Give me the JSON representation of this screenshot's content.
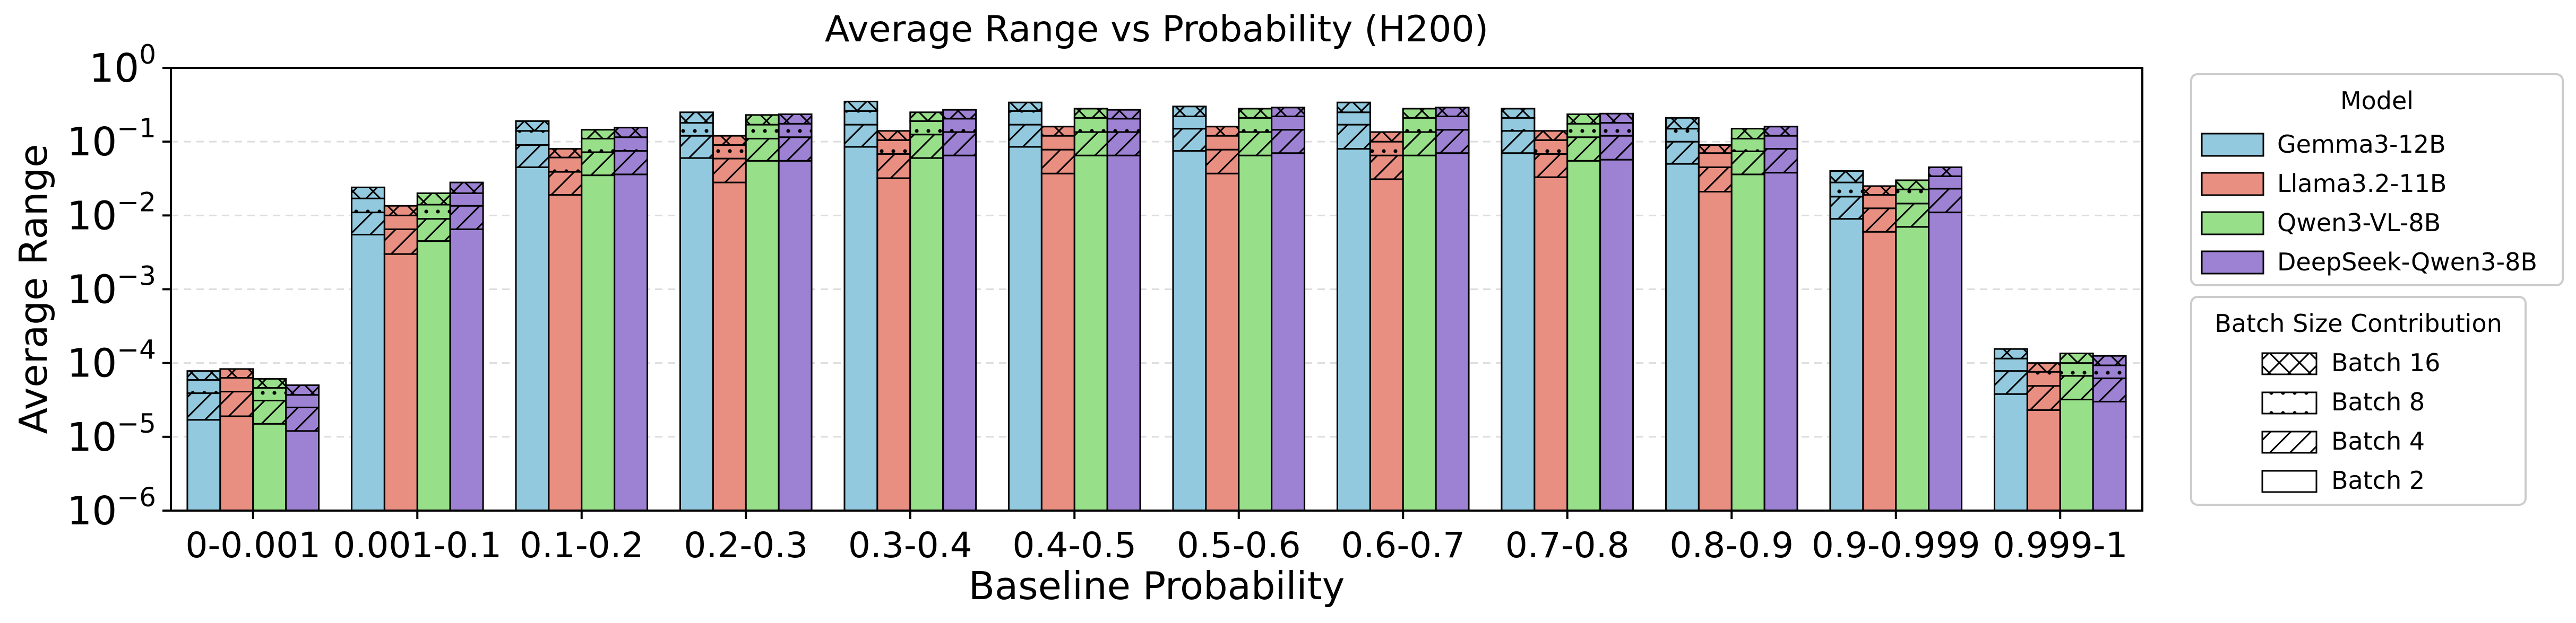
{
  "chart_data": {
    "type": "bar",
    "title": "Average Range vs Probability (H200)",
    "xlabel": "Baseline Probability",
    "ylabel": "Average Range",
    "yscale": "log",
    "ylim": [
      1e-06,
      1
    ],
    "yticks": [
      {
        "value": 1e-06,
        "base": "10",
        "exp": "−6"
      },
      {
        "value": 1e-05,
        "base": "10",
        "exp": "−5"
      },
      {
        "value": 0.0001,
        "base": "10",
        "exp": "−4"
      },
      {
        "value": 0.001,
        "base": "10",
        "exp": "−3"
      },
      {
        "value": 0.01,
        "base": "10",
        "exp": "−2"
      },
      {
        "value": 0.1,
        "base": "10",
        "exp": "−1"
      },
      {
        "value": 1,
        "base": "10",
        "exp": "0"
      }
    ],
    "grid": "horizontal-dashed",
    "categories": [
      "0-0.001",
      "0.001-0.1",
      "0.1-0.2",
      "0.2-0.3",
      "0.3-0.4",
      "0.4-0.5",
      "0.5-0.6",
      "0.6-0.7",
      "0.7-0.8",
      "0.8-0.9",
      "0.9-0.999",
      "0.999-1"
    ],
    "stack_order": [
      "Batch 2",
      "Batch 4",
      "Batch 8",
      "Batch 16"
    ],
    "series": [
      {
        "name": "Gemma3-12B",
        "color": "#92c9de",
        "values": [
          [
            1.7e-05,
            3.9e-05,
            5.9e-05,
            7.8e-05
          ],
          [
            0.0055,
            0.011,
            0.017,
            0.024
          ],
          [
            0.045,
            0.09,
            0.14,
            0.19
          ],
          [
            0.06,
            0.12,
            0.18,
            0.25
          ],
          [
            0.085,
            0.17,
            0.26,
            0.35
          ],
          [
            0.085,
            0.17,
            0.26,
            0.34
          ],
          [
            0.075,
            0.15,
            0.22,
            0.3
          ],
          [
            0.08,
            0.17,
            0.25,
            0.34
          ],
          [
            0.07,
            0.14,
            0.21,
            0.28
          ],
          [
            0.05,
            0.1,
            0.15,
            0.21
          ],
          [
            0.009,
            0.018,
            0.028,
            0.04
          ],
          [
            3.8e-05,
            7.8e-05,
            0.000115,
            0.000155
          ]
        ]
      },
      {
        "name": "Llama3.2-11B",
        "color": "#e88f82",
        "values": [
          [
            1.9e-05,
            4.1e-05,
            6.3e-05,
            8.3e-05
          ],
          [
            0.003,
            0.0065,
            0.01,
            0.0135
          ],
          [
            0.019,
            0.039,
            0.061,
            0.08
          ],
          [
            0.028,
            0.059,
            0.09,
            0.12
          ],
          [
            0.032,
            0.068,
            0.105,
            0.14
          ],
          [
            0.037,
            0.078,
            0.12,
            0.16
          ],
          [
            0.037,
            0.078,
            0.12,
            0.16
          ],
          [
            0.031,
            0.065,
            0.1,
            0.135
          ],
          [
            0.033,
            0.068,
            0.105,
            0.14
          ],
          [
            0.021,
            0.045,
            0.07,
            0.09
          ],
          [
            0.006,
            0.0125,
            0.019,
            0.025
          ],
          [
            2.3e-05,
            4.9e-05,
            7.6e-05,
            0.0001
          ]
        ]
      },
      {
        "name": "Qwen3-VL-8B",
        "color": "#98df8a",
        "values": [
          [
            1.5e-05,
            3.1e-05,
            4.6e-05,
            6.1e-05
          ],
          [
            0.0045,
            0.009,
            0.014,
            0.02
          ],
          [
            0.035,
            0.072,
            0.11,
            0.145
          ],
          [
            0.055,
            0.11,
            0.17,
            0.23
          ],
          [
            0.06,
            0.125,
            0.19,
            0.25
          ],
          [
            0.065,
            0.135,
            0.21,
            0.28
          ],
          [
            0.065,
            0.135,
            0.21,
            0.28
          ],
          [
            0.065,
            0.135,
            0.21,
            0.28
          ],
          [
            0.055,
            0.115,
            0.175,
            0.235
          ],
          [
            0.036,
            0.074,
            0.11,
            0.15
          ],
          [
            0.007,
            0.0145,
            0.0225,
            0.03
          ],
          [
            3.2e-05,
            6.7e-05,
            0.0001,
            0.000135
          ]
        ]
      },
      {
        "name": "DeepSeek-Qwen3-8B",
        "color": "#9d81d2",
        "values": [
          [
            1.2e-05,
            2.5e-05,
            3.7e-05,
            5e-05
          ],
          [
            0.0065,
            0.0135,
            0.02,
            0.028
          ],
          [
            0.036,
            0.075,
            0.115,
            0.155
          ],
          [
            0.055,
            0.115,
            0.175,
            0.235
          ],
          [
            0.065,
            0.135,
            0.205,
            0.27
          ],
          [
            0.065,
            0.135,
            0.205,
            0.27
          ],
          [
            0.07,
            0.145,
            0.22,
            0.29
          ],
          [
            0.07,
            0.145,
            0.22,
            0.29
          ],
          [
            0.057,
            0.12,
            0.18,
            0.24
          ],
          [
            0.038,
            0.08,
            0.12,
            0.16
          ],
          [
            0.011,
            0.023,
            0.034,
            0.045
          ],
          [
            3e-05,
            6.2e-05,
            9.3e-05,
            0.000125
          ]
        ]
      }
    ],
    "legend_model": {
      "title": "Model",
      "entries": [
        "Gemma3-12B",
        "Llama3.2-11B",
        "Qwen3-VL-8B",
        "DeepSeek-Qwen3-8B"
      ],
      "placement": "right, top"
    },
    "legend_batch": {
      "title": "Batch Size Contribution",
      "entries": [
        "Batch 16",
        "Batch 8",
        "Batch 4",
        "Batch 2"
      ],
      "placement": "right, below model legend"
    }
  }
}
